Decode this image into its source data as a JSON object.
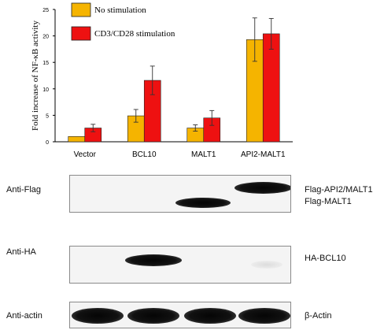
{
  "chart_data": {
    "type": "bar",
    "ylabel": "Fold increase of NF-κB activity",
    "ylim": [
      0,
      25
    ],
    "yticks": [
      "0",
      "5",
      "10",
      "15",
      "20",
      "25"
    ],
    "categories": [
      "Vector",
      "BCL10",
      "MALT1",
      "API2-MALT1"
    ],
    "series": [
      {
        "name": "No stimulation",
        "color": "#f5b400",
        "values": [
          1.0,
          4.9,
          2.6,
          19.3
        ],
        "errors": [
          0,
          1.2,
          0.6,
          4.1
        ]
      },
      {
        "name": "CD3/CD28 stimulation",
        "color": "#ee1111",
        "values": [
          2.6,
          11.6,
          4.5,
          20.4
        ],
        "errors": [
          0.7,
          2.7,
          1.4,
          2.9
        ]
      }
    ],
    "legend_position": "top-left"
  },
  "blots": [
    {
      "label": "Anti-Flag",
      "right_labels": [
        "Flag-API2/MALT1",
        "Flag-MALT1"
      ]
    },
    {
      "label": "Anti-HA",
      "right_labels": [
        "HA-BCL10"
      ]
    },
    {
      "label": "Anti-actin",
      "right_labels": [
        "β-Actin"
      ]
    }
  ]
}
